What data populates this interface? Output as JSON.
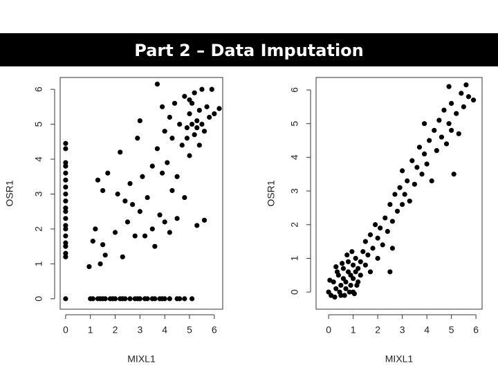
{
  "title": "Part 2 – Data Imputation",
  "chart_data": [
    {
      "type": "scatter",
      "x_label": "MIXL1",
      "y_label": "OSR1",
      "color": "#000000",
      "xlim": [
        -0.22,
        6.34
      ],
      "ylim": [
        -0.3,
        6.34
      ],
      "xticks": [
        0,
        1,
        2,
        3,
        4,
        5,
        6
      ],
      "yticks": [
        0,
        1,
        2,
        3,
        4,
        5,
        6
      ],
      "x": [
        0,
        0,
        0,
        0,
        0,
        0,
        0,
        0,
        0,
        0,
        0,
        0,
        0,
        0,
        0,
        0,
        0,
        0,
        0,
        0,
        1.0,
        1.1,
        1.3,
        1.4,
        1.5,
        1.6,
        1.8,
        1.9,
        2.0,
        2.2,
        2.3,
        2.4,
        2.6,
        2.8,
        2.9,
        3.0,
        3.2,
        3.3,
        3.5,
        3.6,
        3.8,
        3.9,
        4.0,
        4.2,
        4.5,
        4.6,
        4.8,
        5.1,
        0.95,
        1.1,
        1.2,
        1.4,
        1.5,
        1.6,
        1.3,
        1.5,
        1.7,
        2.0,
        2.1,
        2.2,
        2.3,
        2.4,
        2.5,
        2.6,
        2.7,
        2.8,
        2.9,
        3.0,
        3.0,
        3.1,
        3.2,
        3.3,
        3.5,
        3.5,
        3.6,
        3.7,
        3.7,
        3.8,
        3.9,
        3.9,
        4.0,
        4.0,
        4.1,
        4.2,
        4.2,
        4.3,
        4.4,
        4.5,
        4.5,
        4.6,
        4.7,
        4.8,
        4.8,
        4.9,
        5.0,
        5.0,
        5.1,
        5.2,
        5.2,
        5.3,
        5.4,
        5.4,
        5.5,
        5.5,
        5.6,
        5.7,
        5.8,
        5.9,
        6.0,
        6.2,
        5.3,
        5.6,
        4.9,
        5.1,
        5.3,
        5.0,
        4.3
      ],
      "values": [
        0,
        1.2,
        1.3,
        1.5,
        1.6,
        1.8,
        2.0,
        2.1,
        2.3,
        2.5,
        2.6,
        2.8,
        3.0,
        3.2,
        3.4,
        3.6,
        3.8,
        3.9,
        4.3,
        4.45,
        0,
        0,
        0,
        0,
        0,
        0,
        0,
        0,
        0,
        0,
        0,
        0,
        0,
        0,
        0,
        0,
        0,
        0,
        0,
        0,
        0,
        0,
        0,
        0,
        0,
        0,
        0,
        0,
        0.92,
        1.65,
        2.0,
        1.0,
        1.55,
        1.25,
        3.4,
        3.1,
        3.6,
        1.9,
        3.0,
        4.2,
        1.2,
        2.8,
        2.2,
        3.3,
        2.7,
        1.8,
        4.6,
        5.1,
        2.5,
        3.5,
        1.8,
        2.9,
        2.0,
        3.8,
        1.5,
        4.3,
        6.15,
        2.4,
        3.6,
        5.5,
        2.2,
        4.8,
        3.9,
        5.2,
        1.9,
        4.6,
        5.6,
        3.5,
        2.3,
        5.0,
        4.4,
        5.8,
        2.9,
        4.9,
        5.3,
        4.1,
        5.6,
        4.7,
        5.9,
        5.1,
        4.4,
        5.4,
        6.0,
        5.0,
        4.8,
        5.5,
        5.2,
        6.0,
        5.3,
        5.45,
        2.1,
        2.25,
        4.6,
        5.0,
        4.9,
        5.7,
        3.1
      ]
    },
    {
      "type": "scatter",
      "x_label": "MIXL1",
      "y_label": "OSR1",
      "color": "#000000",
      "xlim": [
        -0.51,
        6.25
      ],
      "ylim": [
        -0.51,
        6.37
      ],
      "xticks": [
        0,
        1,
        2,
        3,
        4,
        5,
        6
      ],
      "yticks": [
        0,
        1,
        2,
        3,
        4,
        5,
        6
      ],
      "x": [
        0,
        0.1,
        0.2,
        0.3,
        0.4,
        0.5,
        0.5,
        0.6,
        0.6,
        0.7,
        0.7,
        0.8,
        0.8,
        0.9,
        0.9,
        1.0,
        1.0,
        1.0,
        1.1,
        1.1,
        1.2,
        1.2,
        1.3,
        1.3,
        1.4,
        1.5,
        1.5,
        1.6,
        1.7,
        1.7,
        1.8,
        1.9,
        2.0,
        2.0,
        2.1,
        2.2,
        2.3,
        2.4,
        2.5,
        2.5,
        2.6,
        2.7,
        2.8,
        2.9,
        3.0,
        3.0,
        3.1,
        3.2,
        3.3,
        3.4,
        3.5,
        3.6,
        3.7,
        3.8,
        3.9,
        3.9,
        4.0,
        4.1,
        4.2,
        4.3,
        4.4,
        4.5,
        4.6,
        4.7,
        4.8,
        4.9,
        5.0,
        5.0,
        5.1,
        5.2,
        5.3,
        5.4,
        5.5,
        5.6,
        5.7,
        5.9,
        0.05,
        0.25,
        0.35,
        0.45,
        0.55,
        0.65,
        0.75,
        0.85,
        0.95,
        1.05,
        1.15,
        0.3,
        4.9,
        2.6
      ],
      "values": [
        0,
        -0.1,
        0.3,
        0.1,
        0.5,
        -0.1,
        0.2,
        0.4,
        0.7,
        0.1,
        0.3,
        0.6,
        0.9,
        0.2,
        0.5,
        0.8,
        0,
        0.4,
        0.6,
        1.0,
        0.3,
        0.7,
        0.9,
        0.5,
        1.2,
        0.8,
        1.5,
        1.1,
        0.6,
        1.7,
        1.3,
        2.0,
        1.0,
        1.6,
        1.9,
        1.4,
        2.2,
        1.8,
        2.6,
        0.6,
        2.1,
        2.9,
        2.4,
        3.1,
        2.6,
        3.6,
        2.9,
        3.3,
        2.7,
        3.9,
        3.2,
        3.7,
        4.3,
        3.5,
        4.1,
        5.0,
        3.8,
        4.5,
        3.3,
        4.8,
        4.2,
        5.1,
        4.6,
        5.4,
        4.4,
        5.0,
        5.6,
        4.8,
        3.5,
        5.3,
        4.7,
        5.9,
        5.5,
        6.15,
        5.8,
        5.7,
        0.35,
        -0.15,
        0.6,
        0,
        0.85,
        -0.1,
        1.1,
        0,
        1.2,
        -0.05,
        0.2,
        0.75,
        6.1,
        1.3
      ]
    }
  ]
}
